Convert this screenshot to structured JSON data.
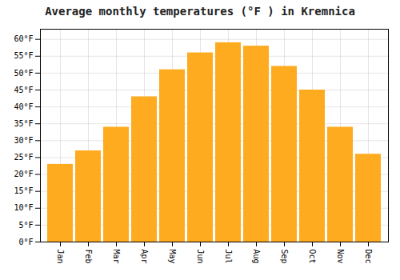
{
  "chart_data": {
    "type": "bar",
    "title": "Average monthly temperatures (°F ) in Kremnica",
    "categories": [
      "Jan",
      "Feb",
      "Mar",
      "Apr",
      "May",
      "Jun",
      "Jul",
      "Aug",
      "Sep",
      "Oct",
      "Nov",
      "Dec"
    ],
    "values": [
      23,
      27,
      34,
      43,
      51,
      56,
      59,
      58,
      52,
      45,
      34,
      26
    ],
    "color": "#FFAB20",
    "ylim": [
      0,
      63
    ],
    "yticks": [
      {
        "value": 0,
        "label": "0°F"
      },
      {
        "value": 5,
        "label": "5°F"
      },
      {
        "value": 10,
        "label": "10°F"
      },
      {
        "value": 15,
        "label": "15°F"
      },
      {
        "value": 20,
        "label": "20°F"
      },
      {
        "value": 25,
        "label": "25°F"
      },
      {
        "value": 30,
        "label": "30°F"
      },
      {
        "value": 35,
        "label": "35°F"
      },
      {
        "value": 40,
        "label": "40°F"
      },
      {
        "value": 45,
        "label": "45°F"
      },
      {
        "value": 50,
        "label": "50°F"
      },
      {
        "value": 55,
        "label": "55°F"
      },
      {
        "value": 60,
        "label": "60°F"
      }
    ],
    "grid": true
  }
}
